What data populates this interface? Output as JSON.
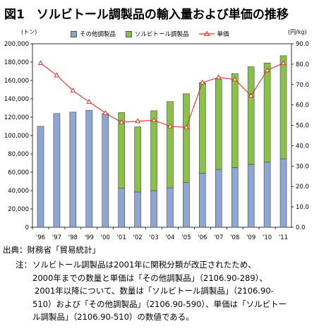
{
  "title": "図1　ソルビトール調製品の輸入量および単価の推移",
  "chart_data": {
    "type": "bar",
    "categories": [
      "'96",
      "'97",
      "'98",
      "'99",
      "'00",
      "'01",
      "'02",
      "'03",
      "'04",
      "'05",
      "'06",
      "'07",
      "'08",
      "'09",
      "'10",
      "'11"
    ],
    "series": [
      {
        "name": "その他調製品",
        "kind": "bar",
        "axis": "left",
        "color": "#8fa5d6",
        "values": [
          110000,
          124000,
          125500,
          127500,
          124000,
          42500,
          38500,
          40000,
          43000,
          49000,
          59000,
          63000,
          65000,
          68500,
          71000,
          74500
        ]
      },
      {
        "name": "ソルビトール調製品",
        "kind": "bar",
        "axis": "left",
        "color": "#8ac249",
        "values": [
          0,
          0,
          0,
          0,
          0,
          82500,
          71000,
          87000,
          94000,
          96500,
          98500,
          98500,
          102500,
          106500,
          108000,
          112500
        ]
      },
      {
        "name": "単価",
        "kind": "line",
        "axis": "right",
        "color": "#d9342b",
        "values": [
          80.5,
          74.5,
          67,
          61.5,
          56,
          51.5,
          52,
          52.5,
          49.5,
          49,
          71,
          73.5,
          72.5,
          64.5,
          77,
          80.5
        ]
      }
    ],
    "left_axis": {
      "unit_label": "(トン)",
      "ylim": [
        0,
        200000
      ],
      "tick_labels": [
        "0",
        "20,000",
        "40,000",
        "60,000",
        "80,000",
        "100,000",
        "120,000",
        "140,000",
        "160,000",
        "180,000",
        "200,000"
      ]
    },
    "right_axis": {
      "unit_label": "(円/kg)",
      "ylim": [
        0,
        90
      ],
      "tick_labels": [
        "0.0",
        "10.0",
        "20.0",
        "30.0",
        "40.0",
        "50.0",
        "60.0",
        "70.0",
        "80.0",
        "90.0"
      ]
    },
    "legend": {
      "position": "top",
      "labels": [
        "その他調製品",
        "ソルビトール調製品",
        "単価"
      ]
    },
    "grid": false
  },
  "source": "出典：財務省「貿易統計」",
  "note": {
    "head": "注：",
    "lines": [
      "ソルビトール調製品は2001年に関税分類が改正されたため、",
      "2000年までの数量と単価は「その他調製品」（2106.90-289）、",
      "2001年以降について、数量は「ソルビトール調製品」（2106.90-",
      "510）および「その他調製品」（2106.90-590）、単価は「ソルビトー",
      "ル調製品」（2106.90-510）の数値である。"
    ]
  }
}
